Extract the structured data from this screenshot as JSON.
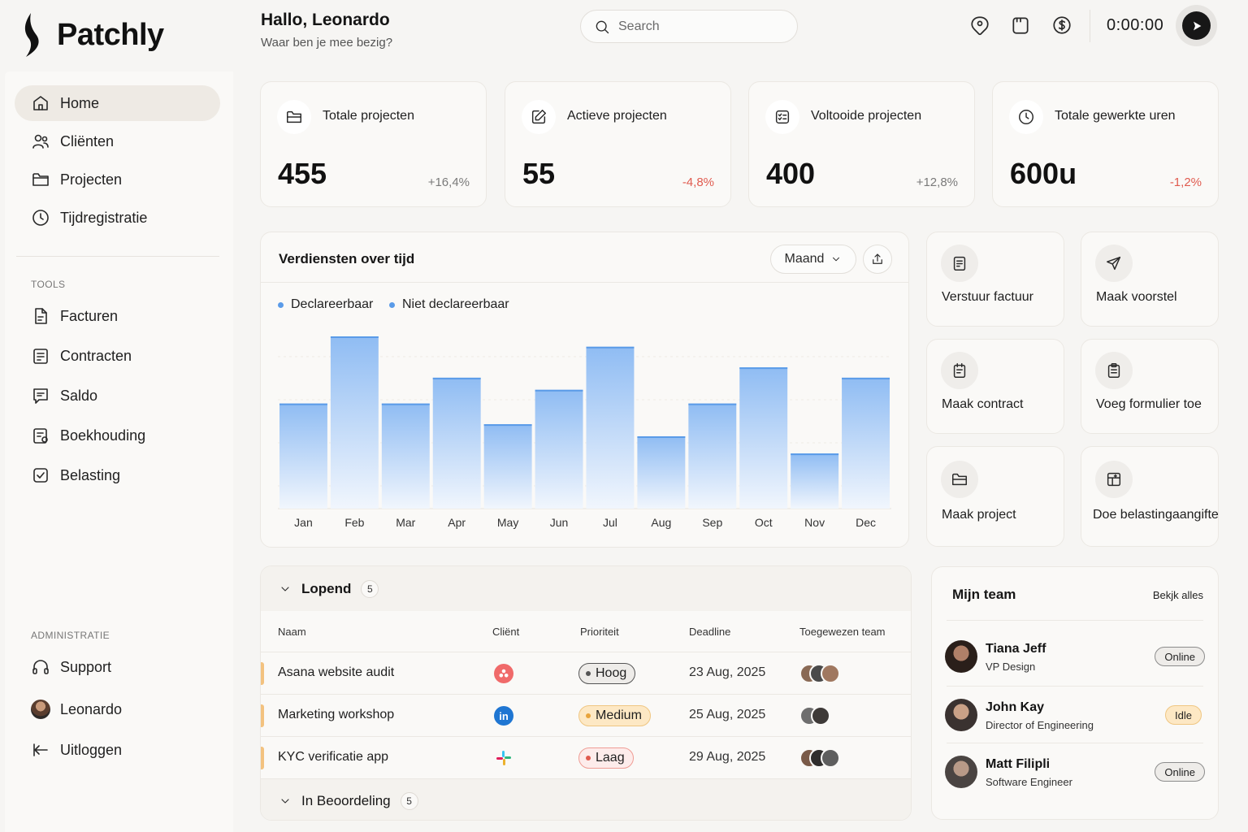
{
  "app": {
    "name": "Patchly"
  },
  "header": {
    "greeting": "Hallo, Leonardo",
    "subtitle": "Waar ben je mee bezig?",
    "search_placeholder": "Search",
    "timer": "0:00:00"
  },
  "sidebar": {
    "main": [
      {
        "label": "Home",
        "icon": "home-icon",
        "active": true
      },
      {
        "label": "Cliënten",
        "icon": "users-icon"
      },
      {
        "label": "Projecten",
        "icon": "folder-icon"
      },
      {
        "label": "Tijdregistratie",
        "icon": "clock-icon"
      }
    ],
    "tools_title": "TOOLS",
    "tools": [
      {
        "label": "Facturen",
        "icon": "invoice-icon"
      },
      {
        "label": "Contracten",
        "icon": "contract-icon"
      },
      {
        "label": "Saldo",
        "icon": "balance-icon"
      },
      {
        "label": "Boekhouding",
        "icon": "bookkeeping-icon"
      },
      {
        "label": "Belasting",
        "icon": "tax-icon"
      }
    ],
    "admin_title": "ADMINISTRATIE",
    "admin": [
      {
        "label": "Support",
        "icon": "headset-icon"
      },
      {
        "label": "Leonardo",
        "icon": "avatar"
      },
      {
        "label": "Uitloggen",
        "icon": "logout-icon"
      }
    ]
  },
  "stats": [
    {
      "label": "Totale projecten",
      "value": "455",
      "change": "+16,4%",
      "trend": "up",
      "icon": "folder-icon"
    },
    {
      "label": "Actieve projecten",
      "value": "55",
      "change": "-4,8%",
      "trend": "down",
      "icon": "edit-icon"
    },
    {
      "label": "Voltooide projecten",
      "value": "400",
      "change": "+12,8%",
      "trend": "up",
      "icon": "checklist-icon"
    },
    {
      "label": "Totale gewerkte uren",
      "value": "600u",
      "change": "-1,2%",
      "trend": "down",
      "icon": "clock-icon"
    }
  ],
  "chart_card": {
    "title": "Verdiensten over tijd",
    "period": "Maand",
    "legend": [
      "Declareerbaar",
      "Niet declareerbaar"
    ]
  },
  "chart_data": {
    "type": "bar",
    "title": "Verdiensten over tijd",
    "categories": [
      "Jan",
      "Feb",
      "Mar",
      "Apr",
      "May",
      "Jun",
      "Jul",
      "Aug",
      "Sep",
      "Oct",
      "Nov",
      "Dec"
    ],
    "series": [
      {
        "name": "Declareerbaar",
        "values": [
          61,
          100,
          61,
          76,
          49,
          69,
          94,
          42,
          61,
          82,
          32,
          76
        ]
      }
    ],
    "ylim": [
      0,
      100
    ],
    "grid": true,
    "legend_position": "top-left",
    "colors": {
      "bar_top": "#8fbcf3",
      "bar_bottom": "#f1f6fd",
      "bar_edge": "#5a9be8"
    }
  },
  "quick_actions": [
    {
      "label": "Verstuur factuur",
      "icon": "invoice-icon"
    },
    {
      "label": "Maak voorstel",
      "icon": "send-icon"
    },
    {
      "label": "Maak contract",
      "icon": "contract-icon"
    },
    {
      "label": "Voeg formulier toe",
      "icon": "clipboard-icon"
    },
    {
      "label": "Maak project",
      "icon": "folder-icon"
    },
    {
      "label": "Doe belastingaangifte",
      "icon": "tax-form-icon"
    }
  ],
  "projects": {
    "group_running": "Lopend",
    "group_running_count": "5",
    "columns": [
      "Naam",
      "Cliënt",
      "Prioriteit",
      "Deadline",
      "Toegewezen team"
    ],
    "rows": [
      {
        "name": "Asana website audit",
        "client_icon": "asana-icon",
        "priority": "Hoog",
        "deadline": "23 Aug, 2025"
      },
      {
        "name": "Marketing workshop",
        "client_icon": "linkedin-icon",
        "priority": "Medium",
        "deadline": "25 Aug, 2025"
      },
      {
        "name": "KYC verificatie app",
        "client_icon": "slack-icon",
        "priority": "Laag",
        "deadline": "29 Aug, 2025"
      }
    ],
    "linkedin_text": "in",
    "group_review": "In Beoordeling",
    "group_review_count": "5"
  },
  "team": {
    "title": "Mijn team",
    "view_all": "Bekjk alles",
    "members": [
      {
        "name": "Tiana Jeff",
        "role": "VP Design",
        "status": "Online"
      },
      {
        "name": "John Kay",
        "role": "Director of Engineering",
        "status": "Idle"
      },
      {
        "name": "Matt Filipli",
        "role": "Software Engineer",
        "status": "Online"
      }
    ]
  }
}
